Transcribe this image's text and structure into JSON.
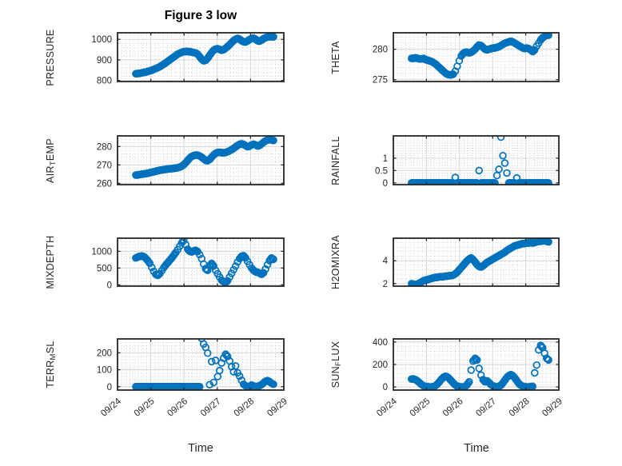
{
  "title": "Figure 3 low",
  "xlabel": "Time",
  "marker_color": "#0072BD",
  "chart_data": {
    "type": "scatter",
    "title": "Figure 3 low",
    "xlabel": "Time",
    "xlim": [
      0,
      5
    ],
    "x_tick_labels": [
      "09/24",
      "09/25",
      "09/26",
      "09/27",
      "09/28",
      "09/29"
    ],
    "x_minor_step": 0.125,
    "time_base": {
      "t0": 0.55,
      "dt": 0.06,
      "unit": "days after 09/24"
    },
    "subplots": [
      {
        "name": "PRESSURE",
        "ylabel_parts": [
          [
            "PRESSURE",
            false
          ]
        ],
        "ylim": [
          795,
          1032
        ],
        "yticks": [
          800,
          900,
          1000
        ],
        "y_minor_step": 20,
        "values": [
          833,
          834,
          835,
          837,
          839,
          841,
          844,
          847,
          850,
          854,
          858,
          862,
          867,
          873,
          879,
          886,
          893,
          900,
          907,
          914,
          921,
          928,
          933,
          937,
          940,
          941,
          941,
          940,
          938,
          936,
          934,
          928,
          916,
          903,
          896,
          898,
          908,
          922,
          936,
          947,
          953,
          955,
          951,
          947,
          950,
          957,
          965,
          974,
          984,
          994,
          1001,
          1005,
          1001,
          993,
          988,
          987,
          992,
          999,
          1004,
          1006,
          1001,
          993,
          991,
          996,
          1003,
          1008,
          1011,
          1013,
          1013,
          1012
        ]
      },
      {
        "name": "THETA",
        "ylabel_parts": [
          [
            "THETA",
            false
          ]
        ],
        "ylim": [
          274.7,
          282.7
        ],
        "yticks": [
          275,
          280
        ],
        "y_minor_step": 1,
        "values": [
          278.5,
          278.5,
          278.6,
          278.5,
          278.4,
          278.4,
          278.5,
          278.3,
          278.2,
          278.1,
          278.0,
          277.8,
          277.6,
          277.3,
          277.0,
          276.7,
          276.4,
          276.1,
          275.9,
          275.8,
          275.8,
          275.9,
          276.4,
          277.2,
          278.1,
          278.9,
          279.3,
          279.5,
          279.5,
          279.4,
          279.5,
          279.7,
          280.0,
          280.4,
          280.7,
          280.6,
          280.3,
          280.0,
          279.9,
          280.0,
          280.1,
          280.2,
          280.2,
          280.3,
          280.4,
          280.6,
          280.8,
          281.0,
          281.1,
          281.2,
          281.3,
          281.2,
          281.0,
          280.8,
          280.6,
          280.4,
          280.2,
          280.1,
          280.2,
          280.1,
          279.9,
          279.6,
          279.9,
          280.5,
          281.0,
          281.5,
          281.9,
          282.1,
          282.3,
          282.3
        ]
      },
      {
        "name": "AIR_TEMP",
        "ylabel_parts": [
          [
            "AIR",
            false
          ],
          [
            "T",
            true
          ],
          [
            "EMP",
            false
          ]
        ],
        "ylim": [
          259.3,
          285.8
        ],
        "yticks": [
          260,
          270,
          280
        ],
        "y_minor_step": 2,
        "values": [
          264.5,
          264.6,
          264.8,
          265.0,
          265.1,
          265.3,
          265.5,
          265.8,
          266.0,
          266.3,
          266.6,
          266.9,
          267.1,
          267.3,
          267.5,
          267.6,
          267.8,
          267.9,
          268.0,
          268.2,
          268.3,
          268.5,
          268.8,
          269.3,
          270.1,
          271.2,
          272.5,
          273.7,
          274.6,
          275.1,
          275.4,
          275.3,
          274.9,
          274.2,
          273.3,
          272.5,
          272.3,
          273.0,
          274.2,
          275.4,
          276.3,
          276.8,
          276.9,
          276.7,
          276.6,
          276.8,
          277.2,
          277.7,
          278.3,
          279.0,
          279.8,
          280.6,
          281.2,
          281.5,
          281.2,
          280.5,
          279.9,
          280.2,
          280.9,
          281.3,
          280.9,
          280.3,
          280.6,
          281.4,
          282.3,
          283.1,
          283.6,
          283.8,
          283.6,
          283.3
        ]
      },
      {
        "name": "RAINFALL",
        "ylabel_parts": [
          [
            "RAINFALL",
            false
          ]
        ],
        "ylim": [
          -0.07,
          1.9
        ],
        "yticks": [
          0,
          0.5,
          1
        ],
        "ytick_labels": [
          "0",
          "0.5",
          "1"
        ],
        "y_minor_step": 0.1,
        "values": [
          0,
          0,
          0,
          0,
          0,
          0,
          0,
          0,
          0,
          0,
          0,
          0,
          0,
          0,
          0,
          0,
          0,
          0,
          0,
          0,
          0,
          0,
          0.22,
          0,
          0,
          0,
          0,
          0,
          0,
          0,
          0,
          0,
          0,
          0,
          0.5,
          0,
          0,
          0,
          0,
          0,
          0,
          0,
          0,
          0.3,
          0.55,
          1.85,
          1.1,
          0.8,
          0.4,
          0,
          0,
          0,
          0,
          0.2,
          0,
          0,
          0,
          0,
          0,
          0,
          0,
          0,
          0,
          0,
          0,
          0,
          0,
          0,
          0,
          0
        ]
      },
      {
        "name": "MIXDEPTH",
        "ylabel_parts": [
          [
            "MIXDEPTH",
            false
          ]
        ],
        "ylim": [
          -40,
          1390
        ],
        "yticks": [
          0,
          500,
          1000
        ],
        "y_minor_step": 100,
        "values": [
          800,
          830,
          850,
          860,
          840,
          790,
          720,
          640,
          520,
          400,
          310,
          280,
          330,
          420,
          510,
          590,
          660,
          730,
          800,
          880,
          960,
          1050,
          1150,
          1250,
          1330,
          1200,
          1060,
          1000,
          980,
          1010,
          1030,
          990,
          900,
          780,
          620,
          480,
          430,
          560,
          640,
          560,
          430,
          330,
          230,
          140,
          90,
          70,
          120,
          230,
          340,
          450,
          560,
          680,
          780,
          850,
          870,
          800,
          700,
          600,
          500,
          430,
          390,
          370,
          350,
          310,
          360,
          470,
          600,
          720,
          800,
          760
        ]
      },
      {
        "name": "H2OMIXRA",
        "ylabel_parts": [
          [
            "H2OMIXRA",
            false
          ]
        ],
        "ylim": [
          1.78,
          5.97
        ],
        "yticks": [
          2,
          4
        ],
        "y_minor_step": 0.4,
        "values": [
          2.0,
          1.95,
          1.9,
          1.95,
          2.05,
          2.15,
          2.25,
          2.3,
          2.35,
          2.4,
          2.45,
          2.5,
          2.55,
          2.55,
          2.6,
          2.6,
          2.6,
          2.65,
          2.65,
          2.7,
          2.7,
          2.75,
          2.85,
          3.0,
          3.2,
          3.4,
          3.6,
          3.8,
          4.0,
          4.15,
          4.25,
          4.1,
          3.9,
          3.65,
          3.5,
          3.45,
          3.55,
          3.7,
          3.85,
          3.95,
          4.05,
          4.15,
          4.25,
          4.35,
          4.45,
          4.55,
          4.65,
          4.75,
          4.9,
          5.0,
          5.1,
          5.2,
          5.3,
          5.35,
          5.4,
          5.45,
          5.5,
          5.5,
          5.55,
          5.55,
          5.6,
          5.55,
          5.6,
          5.65,
          5.7,
          5.7,
          5.75,
          5.75,
          5.7,
          5.65
        ]
      },
      {
        "name": "TERR_MSL",
        "ylabel_parts": [
          [
            "TERR",
            false
          ],
          [
            "M",
            true
          ],
          [
            "SL",
            false
          ]
        ],
        "ylim": [
          -20,
          282
        ],
        "yticks": [
          0,
          100,
          200
        ],
        "y_minor_step": 20,
        "values": [
          0,
          0,
          0,
          0,
          0,
          0,
          0,
          0,
          0,
          0,
          0,
          0,
          0,
          0,
          0,
          0,
          0,
          0,
          0,
          0,
          0,
          0,
          0,
          0,
          0,
          0,
          0,
          0,
          0,
          0,
          0,
          0,
          0,
          285,
          252,
          232,
          198,
          12,
          148,
          25,
          155,
          60,
          95,
          140,
          168,
          192,
          178,
          152,
          118,
          88,
          122,
          82,
          62,
          38,
          14,
          5,
          0,
          2,
          10,
          4,
          0,
          2,
          6,
          12,
          22,
          32,
          36,
          30,
          20,
          14
        ]
      },
      {
        "name": "SUN_FLUX",
        "ylabel_parts": [
          [
            "SUN",
            false
          ],
          [
            "F",
            true
          ],
          [
            "LUX",
            false
          ]
        ],
        "ylim": [
          -28,
          428
        ],
        "yticks": [
          0,
          200,
          400
        ],
        "y_minor_step": 40,
        "values": [
          70,
          72,
          65,
          52,
          38,
          22,
          10,
          4,
          2,
          0,
          0,
          2,
          10,
          25,
          45,
          68,
          85,
          95,
          90,
          75,
          55,
          35,
          18,
          6,
          2,
          0,
          0,
          3,
          20,
          45,
          150,
          230,
          255,
          240,
          165,
          105,
          65,
          45,
          55,
          40,
          20,
          8,
          3,
          2,
          5,
          15,
          35,
          60,
          85,
          100,
          110,
          100,
          80,
          55,
          30,
          15,
          5,
          2,
          0,
          0,
          2,
          5,
          125,
          195,
          330,
          370,
          350,
          300,
          255,
          240
        ]
      }
    ]
  }
}
